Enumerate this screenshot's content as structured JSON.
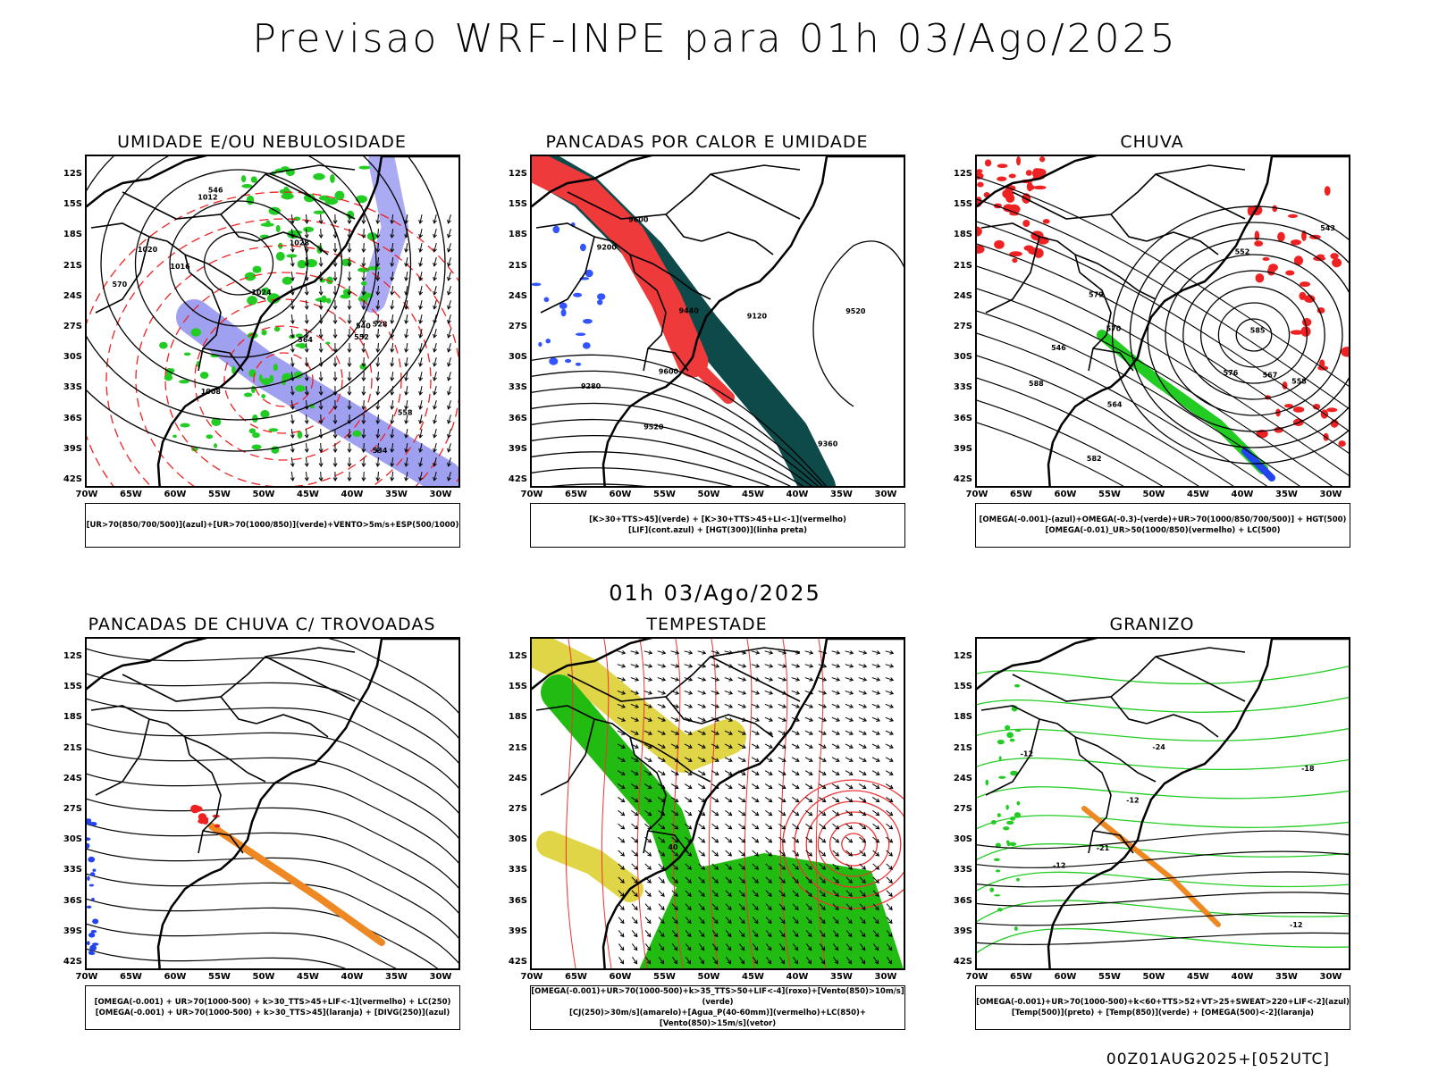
{
  "header": {
    "title": "Previsao WRF-INPE  para 01h 03/Ago/2025"
  },
  "mid_title": "01h 03/Ago/2025",
  "footer": "00Z01AUG2025+[052UTC]",
  "lat_labels": [
    "12S",
    "15S",
    "18S",
    "21S",
    "24S",
    "27S",
    "30S",
    "33S",
    "36S",
    "39S",
    "42S"
  ],
  "lon_labels": [
    "70W",
    "65W",
    "60W",
    "55W",
    "50W",
    "45W",
    "40W",
    "35W",
    "30W"
  ],
  "panels": [
    {
      "title": "UMIDADE E/OU NEBULOSIDADE",
      "legend": [
        "[UR>70(850/700/500)](azul)+[UR>70(1000/850)](verde)+VENTO>5m/s+ESP(500/1000)"
      ],
      "labels": [
        "1016",
        "1020",
        "1024",
        "1012",
        "1008",
        "1028",
        "570",
        "564",
        "558",
        "552",
        "546",
        "540",
        "534",
        "528"
      ],
      "colors": {
        "rh_upper": "#8888ee",
        "rh_low": "#22cc22",
        "thickness": "#ee2222"
      }
    },
    {
      "title": "PANCADAS POR CALOR E UMIDADE",
      "legend": [
        "[K>30+TTS>45](verde) + [K>30+TTS>45+LI<-1](vermelho)",
        "[LIF](cont.azul) + [HGT(300)](linha preta)"
      ],
      "labels": [
        "9600",
        "9520",
        "9440",
        "9360",
        "9280",
        "9200",
        "9120",
        "9520",
        "9600"
      ],
      "colors": {
        "k_tts": "#0e4a4a",
        "k_tts_li": "#ee3a3a",
        "lif": "#3355ff"
      }
    },
    {
      "title": "CHUVA",
      "legend": [
        "[OMEGA(-0.001)-(azul)+OMEGA(-0.3)-(verde)+UR>70(1000/850/700/500)] + HGT(500)",
        "[OMEGA(-0.01)_UR>50(1000/850)(vermelho) + LC(500)"
      ],
      "labels": [
        "582",
        "576",
        "570",
        "564",
        "558",
        "552",
        "546",
        "543",
        "585",
        "588",
        "579",
        "567"
      ],
      "colors": {
        "omega_weak": "#2244ee",
        "omega_strong": "#22cc22",
        "omega_rh50": "#ee2222"
      }
    },
    {
      "title": "PANCADAS DE CHUVA C/ TROVOADAS",
      "legend": [
        "[OMEGA(-0.001) + UR>70(1000-500) + k>30_TTS>45+LIF<-1](vermelho) + LC(250)",
        "[OMEGA(-0.001) + UR>70(1000-500) + k>30_TTS>45](laranja) + [DIVG(250)](azul)"
      ],
      "labels": [],
      "colors": {
        "storm_red": "#ee2222",
        "storm_orange": "#ee8822",
        "divg": "#2244ee"
      }
    },
    {
      "title": "TEMPESTADE",
      "legend": [
        "[OMEGA(-0.001)+UR>70(1000-500)+k>35_TTS>50+LIF<-4](roxo)+[Vento(850)>10m/s](verde)",
        "[CJ(250)>30m/s](amarelo)+[Agua_P(40-60mm)](vermelho)+LC(850)+[Vento(850)>15m/s](vetor)"
      ],
      "labels": [
        "40"
      ],
      "colors": {
        "wind850": "#22bb11",
        "jet250": "#ddd033",
        "water": "#ee3333"
      }
    },
    {
      "title": "GRANIZO",
      "legend": [
        "[OMEGA(-0.001)+UR>70(1000-500)+k<60+TTS>52+VT>25+SWEAT>220+LIF<-2](azul)",
        "[Temp(500)](preto) + [Temp(850)](verde) + [OMEGA(500)<-2](laranja)"
      ],
      "labels": [
        "-12",
        "-12",
        "-12",
        "-18",
        "-21",
        "-24",
        "-12"
      ],
      "colors": {
        "temp850": "#22cc22",
        "omega500": "#ee8822",
        "temp500": "#000000"
      }
    }
  ]
}
